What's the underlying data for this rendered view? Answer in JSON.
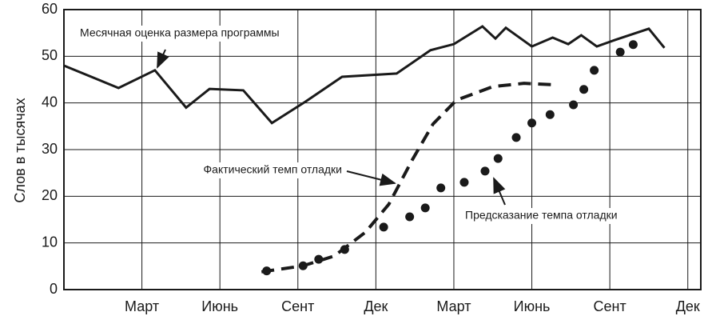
{
  "chart_data": {
    "type": "line",
    "ylabel": "Слов в тысячах",
    "xlim": [
      0,
      24.5
    ],
    "xticks": [
      {
        "value": 3,
        "label": "Март"
      },
      {
        "value": 6,
        "label": "Июнь"
      },
      {
        "value": 9,
        "label": "Сент"
      },
      {
        "value": 12,
        "label": "Дек"
      },
      {
        "value": 15,
        "label": "Март"
      },
      {
        "value": 18,
        "label": "Июнь"
      },
      {
        "value": 21,
        "label": "Сент"
      },
      {
        "value": 24,
        "label": "Дек"
      }
    ],
    "ylim": [
      0,
      60
    ],
    "yticks": [
      0,
      10,
      20,
      30,
      40,
      50,
      60
    ],
    "grid": true,
    "series": [
      {
        "name": "Месячная оценка размера программы",
        "color": "#1a1a1a",
        "style": "solid",
        "x": [
          0,
          2.1,
          3.5,
          4.7,
          5.6,
          6.9,
          8.0,
          9.3,
          10.7,
          12.8,
          14.1,
          15.0,
          16.1,
          16.6,
          17.0,
          18.0,
          18.8,
          19.4,
          19.9,
          20.5,
          21.2,
          22.5,
          23.1
        ],
        "values": [
          48,
          43.2,
          47,
          39,
          43,
          42.7,
          35.7,
          40.3,
          45.6,
          46.3,
          51.3,
          52.6,
          56.4,
          53.8,
          56.1,
          52.1,
          54,
          52.6,
          54.5,
          52.1,
          53.5,
          55.9,
          51.8
        ]
      },
      {
        "name": "Фактический темп отладки",
        "color": "#1a1a1a",
        "style": "dashed",
        "x": [
          7.6,
          9.2,
          10.4,
          11.6,
          12.5,
          13.4,
          14.2,
          15.1,
          16.5,
          17.7,
          18.8
        ],
        "values": [
          3.8,
          5.1,
          7.2,
          12.3,
          18.3,
          27.8,
          35.5,
          40.6,
          43.5,
          44.2,
          43.9
        ]
      },
      {
        "name": "Предсказание темпа отладки",
        "color": "#1a1a1a",
        "style": "dots",
        "x": [
          7.8,
          9.2,
          9.8,
          10.8,
          12.3,
          13.3,
          13.9,
          14.5,
          15.4,
          16.2,
          16.7,
          17.4,
          18.0,
          18.7,
          19.6,
          20.0,
          20.4,
          21.4,
          21.9
        ],
        "values": [
          4,
          5.1,
          6.5,
          8.6,
          13.4,
          15.6,
          17.5,
          21.8,
          23,
          25.4,
          28.1,
          32.6,
          35.7,
          37.5,
          39.6,
          42.9,
          47,
          50.9,
          52.5
        ]
      }
    ]
  }
}
